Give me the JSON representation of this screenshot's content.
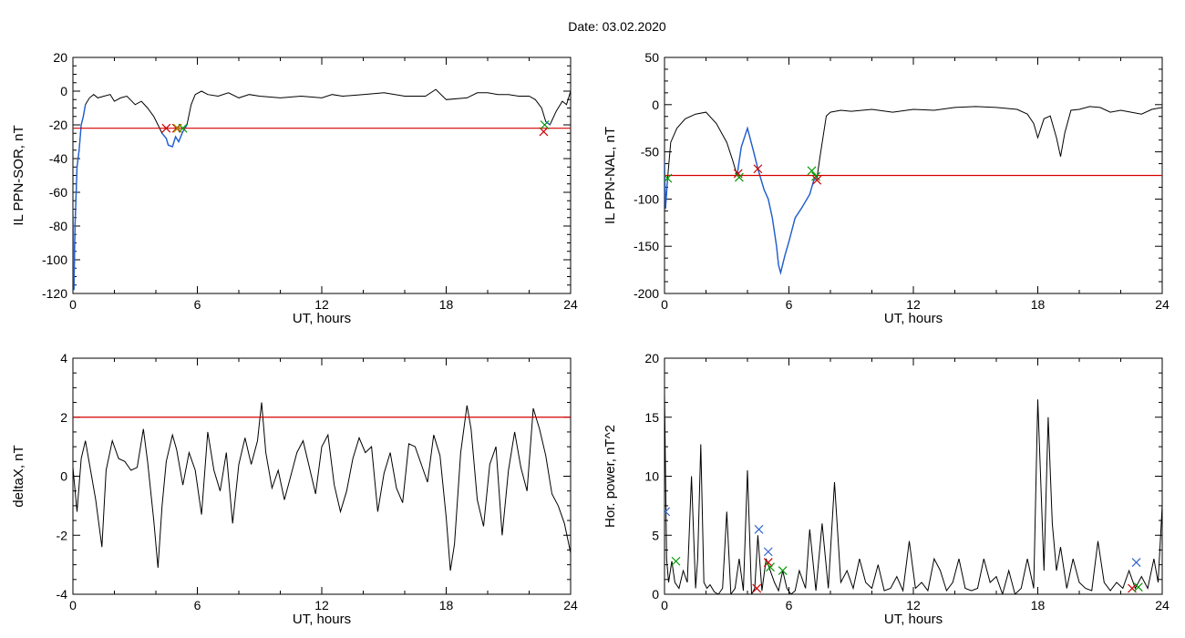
{
  "title": "Date:  03.02.2020",
  "chart_data": [
    {
      "type": "line",
      "title": "",
      "xlabel": "UT, hours",
      "ylabel": "IL PPN-SOR, nT",
      "xlim": [
        0,
        24
      ],
      "ylim": [
        -120,
        20
      ],
      "xticks": [
        "0",
        "6",
        "12",
        "18",
        "24"
      ],
      "yticks": [
        "20",
        "0",
        "-20",
        "-40",
        "-60",
        "-80",
        "-100",
        "-120"
      ],
      "threshold": -22,
      "series": [
        {
          "x": [
            0,
            0.05,
            0.1,
            0.2,
            0.3,
            0.4,
            0.5,
            0.6,
            0.8,
            1.0,
            1.2,
            1.5,
            1.8,
            2.0,
            2.3,
            2.6,
            3.0,
            3.3,
            3.6,
            3.9,
            4.1,
            4.3,
            4.5,
            4.6,
            4.8,
            4.95,
            5.1,
            5.3,
            5.5,
            5.7,
            5.9,
            6.2,
            6.5,
            7.0,
            7.5,
            8.0,
            8.5,
            9.0,
            10,
            11,
            12,
            12.5,
            13,
            14,
            15,
            16,
            17,
            17.5,
            18,
            19,
            19.5,
            20,
            20.5,
            21,
            21.5,
            22,
            22.3,
            22.6,
            22.8,
            23.0,
            23.3,
            23.6,
            23.8,
            24
          ],
          "y": [
            -70,
            -118,
            -80,
            -45,
            -35,
            -20,
            -15,
            -8,
            -4,
            -2,
            -4,
            -3,
            -2,
            -6,
            -4,
            -3,
            -8,
            -6,
            -10,
            -15,
            -20,
            -25,
            -28,
            -32,
            -33,
            -27,
            -30,
            -24,
            -20,
            -8,
            -2,
            0,
            -2,
            -3,
            -1,
            -4,
            -2,
            -3,
            -4,
            -3,
            -4,
            -2,
            -3,
            -2,
            -1,
            -3,
            -3,
            1,
            -5,
            -4,
            -1,
            -1,
            -2,
            -2,
            -3,
            -3,
            -5,
            -10,
            -18,
            -20,
            -12,
            -6,
            -8,
            0
          ]
        }
      ],
      "highlight_segments": [
        [
          0,
          0.6
        ],
        [
          4.3,
          5.6
        ],
        [
          22.8,
          23.0
        ]
      ],
      "markers": [
        {
          "x": 4.5,
          "y": -22,
          "color": "#cc0000"
        },
        {
          "x": 5.0,
          "y": -22,
          "color": "#cc0000"
        },
        {
          "x": 5.3,
          "y": -22,
          "color": "#009900"
        },
        {
          "x": 5.05,
          "y": -22,
          "color": "#999900"
        },
        {
          "x": 22.7,
          "y": -24,
          "color": "#cc0000"
        },
        {
          "x": 22.75,
          "y": -20,
          "color": "#009900"
        }
      ]
    },
    {
      "type": "line",
      "title": "",
      "xlabel": "UT, hours",
      "ylabel": "IL PPN-NAL, nT",
      "xlim": [
        0,
        24
      ],
      "ylim": [
        -200,
        50
      ],
      "xticks": [
        "0",
        "6",
        "12",
        "18",
        "24"
      ],
      "yticks": [
        "50",
        "0",
        "-50",
        "-100",
        "-150",
        "-200"
      ],
      "threshold": -75,
      "series": [
        {
          "x": [
            0,
            0.05,
            0.15,
            0.3,
            0.6,
            1.0,
            1.5,
            2.0,
            2.5,
            3.0,
            3.3,
            3.5,
            3.7,
            4.0,
            4.3,
            4.5,
            4.8,
            5.0,
            5.2,
            5.4,
            5.5,
            5.6,
            5.8,
            6.0,
            6.3,
            6.6,
            7.0,
            7.2,
            7.35,
            7.5,
            7.8,
            8.0,
            8.5,
            9.0,
            10,
            11,
            12,
            13,
            14,
            15,
            16,
            17,
            17.5,
            17.8,
            18.0,
            18.3,
            18.6,
            18.9,
            19.1,
            19.3,
            19.6,
            20.0,
            20.5,
            21,
            21.5,
            22,
            22.5,
            23,
            23.5,
            24
          ],
          "y": [
            -60,
            -110,
            -78,
            -40,
            -25,
            -15,
            -10,
            -8,
            -20,
            -40,
            -60,
            -75,
            -45,
            -25,
            -50,
            -68,
            -90,
            -100,
            -120,
            -150,
            -170,
            -178,
            -160,
            -145,
            -120,
            -110,
            -95,
            -80,
            -78,
            -55,
            -12,
            -8,
            -6,
            -7,
            -5,
            -8,
            -5,
            -6,
            -3,
            -2,
            -3,
            -5,
            -10,
            -20,
            -35,
            -15,
            -12,
            -35,
            -55,
            -30,
            -6,
            -5,
            -2,
            -3,
            -8,
            -6,
            -8,
            -10,
            -5,
            -3
          ]
        }
      ],
      "highlight_segments": [
        [
          0,
          0.2
        ],
        [
          3.5,
          7.4
        ]
      ],
      "markers": [
        {
          "x": 0.15,
          "y": -78,
          "color": "#009900"
        },
        {
          "x": 3.55,
          "y": -73,
          "color": "#cc0000"
        },
        {
          "x": 3.6,
          "y": -77,
          "color": "#009900"
        },
        {
          "x": 4.5,
          "y": -68,
          "color": "#cc0000"
        },
        {
          "x": 7.1,
          "y": -70,
          "color": "#009900"
        },
        {
          "x": 7.3,
          "y": -76,
          "color": "#009900"
        },
        {
          "x": 7.35,
          "y": -80,
          "color": "#cc0000"
        }
      ]
    },
    {
      "type": "line",
      "title": "",
      "xlabel": "UT, hours",
      "ylabel": "deltaX, nT",
      "xlim": [
        0,
        24
      ],
      "ylim": [
        -4,
        4
      ],
      "xticks": [
        "0",
        "6",
        "12",
        "18",
        "24"
      ],
      "yticks": [
        "4",
        "2",
        "0",
        "-2",
        "-4"
      ],
      "threshold": 2,
      "series": [
        {
          "x": [
            0,
            0.2,
            0.4,
            0.6,
            0.9,
            1.1,
            1.4,
            1.6,
            1.9,
            2.2,
            2.5,
            2.8,
            3.1,
            3.4,
            3.6,
            3.9,
            4.1,
            4.3,
            4.5,
            4.8,
            5.0,
            5.3,
            5.6,
            5.9,
            6.2,
            6.5,
            6.8,
            7.1,
            7.4,
            7.7,
            8.0,
            8.3,
            8.6,
            8.9,
            9.1,
            9.3,
            9.6,
            9.9,
            10.2,
            10.5,
            10.8,
            11.1,
            11.4,
            11.7,
            12.0,
            12.3,
            12.6,
            12.9,
            13.2,
            13.5,
            13.8,
            14.1,
            14.4,
            14.7,
            15.0,
            15.3,
            15.6,
            15.9,
            16.2,
            16.5,
            16.8,
            17.1,
            17.4,
            17.7,
            18.0,
            18.2,
            18.4,
            18.7,
            19.0,
            19.2,
            19.5,
            19.8,
            20.1,
            20.4,
            20.7,
            21.0,
            21.3,
            21.6,
            21.9,
            22.2,
            22.5,
            22.8,
            23.1,
            23.4,
            23.7,
            24.0
          ],
          "y": [
            0.3,
            -1.2,
            0.6,
            1.2,
            0.0,
            -0.8,
            -2.4,
            0.2,
            1.2,
            0.6,
            0.5,
            0.2,
            0.3,
            1.6,
            0.5,
            -1.5,
            -3.1,
            -1.0,
            0.5,
            1.4,
            0.9,
            -0.3,
            0.8,
            0.2,
            -1.3,
            1.5,
            0.2,
            -0.5,
            0.8,
            -1.6,
            0.4,
            1.3,
            0.4,
            1.2,
            2.5,
            0.8,
            -0.4,
            0.2,
            -0.8,
            0.0,
            0.8,
            1.2,
            0.3,
            -0.6,
            1.0,
            1.4,
            -0.3,
            -1.2,
            -0.5,
            0.6,
            1.3,
            0.8,
            1.0,
            -1.2,
            0.1,
            0.8,
            -0.4,
            -0.9,
            1.1,
            1.0,
            0.4,
            -0.2,
            1.4,
            0.7,
            -1.4,
            -3.2,
            -2.3,
            0.8,
            2.4,
            1.6,
            -0.8,
            -1.7,
            0.4,
            1.0,
            -2.0,
            0.2,
            1.5,
            0.3,
            -0.5,
            2.3,
            1.6,
            0.7,
            -0.6,
            -1.0,
            -1.6,
            -2.6
          ]
        }
      ],
      "highlight_segments": [],
      "markers": []
    },
    {
      "type": "line",
      "title": "",
      "xlabel": "UT, hours",
      "ylabel": "Hor. power, nT^2",
      "xlim": [
        0,
        24
      ],
      "ylim": [
        0,
        20
      ],
      "xticks": [
        "0",
        "6",
        "12",
        "18",
        "24"
      ],
      "yticks": [
        "20",
        "15",
        "10",
        "5",
        "0"
      ],
      "series": [
        {
          "x": [
            0,
            0.1,
            0.2,
            0.35,
            0.5,
            0.7,
            0.9,
            1.1,
            1.3,
            1.5,
            1.6,
            1.75,
            1.9,
            2.05,
            2.2,
            2.4,
            2.6,
            2.8,
            3.0,
            3.2,
            3.4,
            3.6,
            3.8,
            4.0,
            4.2,
            4.35,
            4.5,
            4.7,
            4.9,
            5.1,
            5.3,
            5.5,
            5.7,
            5.9,
            6.1,
            6.3,
            6.5,
            6.8,
            7.0,
            7.3,
            7.6,
            7.9,
            8.2,
            8.5,
            8.8,
            9.1,
            9.4,
            9.7,
            10.0,
            10.3,
            10.6,
            10.9,
            11.2,
            11.5,
            11.8,
            12.1,
            12.4,
            12.7,
            13.0,
            13.3,
            13.6,
            13.9,
            14.2,
            14.5,
            14.8,
            15.1,
            15.4,
            15.7,
            16.0,
            16.3,
            16.6,
            16.9,
            17.2,
            17.5,
            17.8,
            18.0,
            18.3,
            18.5,
            18.7,
            18.9,
            19.1,
            19.4,
            19.7,
            20.0,
            20.3,
            20.6,
            20.9,
            21.2,
            21.5,
            21.8,
            22.1,
            22.4,
            22.7,
            23.0,
            23.3,
            23.6,
            23.8,
            24.0
          ],
          "y": [
            17,
            3,
            1,
            2.8,
            1,
            0.5,
            2,
            1,
            10,
            0.5,
            3,
            12.7,
            1,
            0.5,
            0.8,
            0.2,
            0,
            0.5,
            7,
            0,
            0.5,
            3,
            0.3,
            10.5,
            0,
            0.5,
            5,
            0.3,
            3,
            2,
            1,
            0.3,
            2,
            0.5,
            0,
            0.3,
            2,
            0.5,
            5.5,
            0.3,
            6,
            0.5,
            9.5,
            1,
            2,
            0.5,
            3,
            1,
            0.5,
            2.5,
            0.3,
            0.5,
            1.5,
            0.3,
            4.5,
            0.5,
            1,
            0.3,
            3,
            2,
            0.3,
            1,
            3,
            0.5,
            0.3,
            0.5,
            3,
            1,
            1.5,
            0,
            2,
            0,
            0.5,
            3,
            0.5,
            16.5,
            2,
            15,
            6,
            2,
            4,
            0.5,
            3,
            1,
            0.5,
            0.3,
            4.5,
            1,
            0.3,
            1,
            0.5,
            2,
            0.5,
            1.5,
            0.5,
            3,
            1,
            7.5
          ]
        }
      ],
      "highlight_segments": [],
      "markers": [
        {
          "x": 0.05,
          "y": 7,
          "color": "#3366cc"
        },
        {
          "x": 0.55,
          "y": 2.8,
          "color": "#009900"
        },
        {
          "x": 4.45,
          "y": 0.5,
          "color": "#cc0000"
        },
        {
          "x": 4.55,
          "y": 5.5,
          "color": "#3366cc"
        },
        {
          "x": 5.0,
          "y": 3.6,
          "color": "#3366cc"
        },
        {
          "x": 5.0,
          "y": 2.7,
          "color": "#cc0000"
        },
        {
          "x": 5.1,
          "y": 2.3,
          "color": "#009900"
        },
        {
          "x": 5.7,
          "y": 2.0,
          "color": "#009900"
        },
        {
          "x": 22.55,
          "y": 0.5,
          "color": "#cc0000"
        },
        {
          "x": 22.75,
          "y": 2.7,
          "color": "#3366cc"
        },
        {
          "x": 22.85,
          "y": 0.6,
          "color": "#009900"
        }
      ]
    }
  ]
}
